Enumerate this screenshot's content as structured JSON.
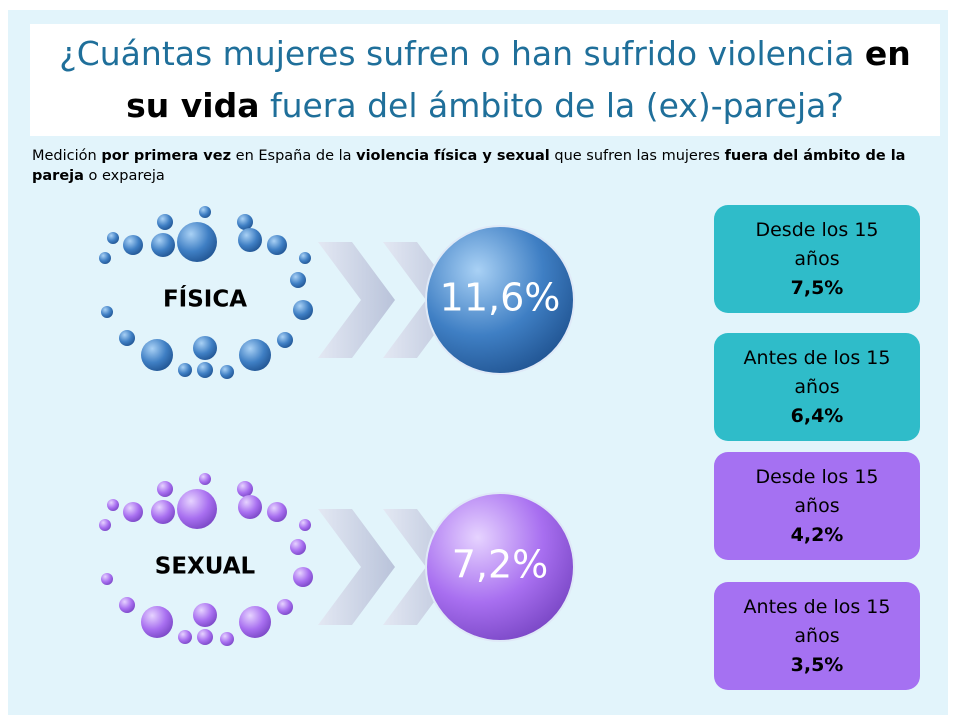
{
  "title": {
    "parts": [
      {
        "text": "¿Cuántas mujeres sufren o han sufrido violencia ",
        "bold": false
      },
      {
        "text": "en su vida",
        "bold": true
      },
      {
        "text": " fuera del ámbito de la (ex)-pareja?",
        "bold": false
      }
    ]
  },
  "subtitle": {
    "parts": [
      {
        "text": "Medición ",
        "bold": false
      },
      {
        "text": "por primera vez",
        "bold": true
      },
      {
        "text": " en España de la ",
        "bold": false
      },
      {
        "text": "violencia física y sexual",
        "bold": true
      },
      {
        "text": " que sufren las mujeres ",
        "bold": false
      },
      {
        "text": "fuera del ámbito de la pareja",
        "bold": true
      },
      {
        "text": " o expareja",
        "bold": false
      }
    ]
  },
  "categories": [
    {
      "name": "FÍSICA",
      "total": "11,6%",
      "details": [
        {
          "label": "Desde los 15 años",
          "value": "7,5%"
        },
        {
          "label": "Antes de los 15 años",
          "value": "6,4%"
        }
      ]
    },
    {
      "name": "SEXUAL",
      "total": "7,2%",
      "details": [
        {
          "label": "Desde los 15 años",
          "value": "4,2%"
        },
        {
          "label": "Antes de los 15 años",
          "value": "3,5%"
        }
      ]
    }
  ]
}
